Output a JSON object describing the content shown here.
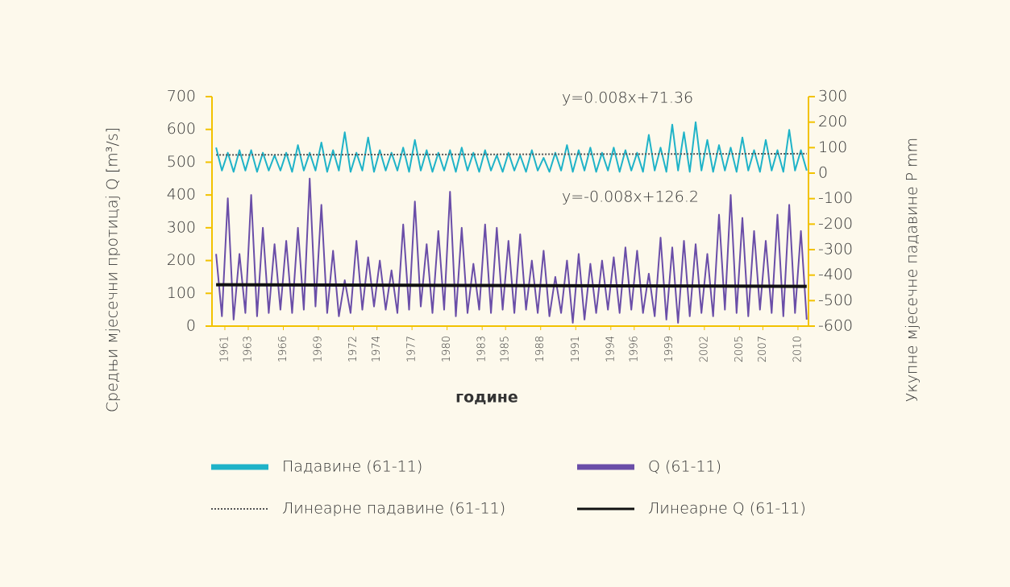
{
  "chart_data": {
    "type": "line",
    "y_label": "Средњи мјесечни протицај Q [m³/s]",
    "y2_label": "Укупне мјесечне падавине P mm",
    "x_label": "године",
    "annotations": [
      "y=0.008x+71.36",
      "y=-0.008x+126.2"
    ],
    "xlim": [
      1959.9,
      2010.9
    ],
    "xticks": [
      1961,
      1963,
      1966,
      1969,
      1972,
      1974,
      1977,
      1980,
      1983,
      1985,
      1988,
      1991,
      1994,
      1996,
      1999,
      2002,
      2005,
      2007,
      2010
    ],
    "ylim": [
      0,
      700
    ],
    "yticks": [
      0,
      100,
      200,
      300,
      400,
      500,
      600,
      700
    ],
    "y2lim": [
      -600,
      300
    ],
    "y2ticks": [
      -600,
      -500,
      -400,
      -300,
      -200,
      -100,
      0,
      100,
      200,
      300
    ],
    "x": [
      1960.25,
      1960.75,
      1961.25,
      1961.75,
      1962.25,
      1962.75,
      1963.25,
      1963.75,
      1964.25,
      1964.75,
      1965.25,
      1965.75,
      1966.25,
      1966.75,
      1967.25,
      1967.75,
      1968.25,
      1968.75,
      1969.25,
      1969.75,
      1970.25,
      1970.75,
      1971.25,
      1971.75,
      1972.25,
      1972.75,
      1973.25,
      1973.75,
      1974.25,
      1974.75,
      1975.25,
      1975.75,
      1976.25,
      1976.75,
      1977.25,
      1977.75,
      1978.25,
      1978.75,
      1979.25,
      1979.75,
      1980.25,
      1980.75,
      1981.25,
      1981.75,
      1982.25,
      1982.75,
      1983.25,
      1983.75,
      1984.25,
      1984.75,
      1985.25,
      1985.75,
      1986.25,
      1986.75,
      1987.25,
      1987.75,
      1988.25,
      1988.75,
      1989.25,
      1989.75,
      1990.25,
      1990.75,
      1991.25,
      1991.75,
      1992.25,
      1992.75,
      1993.25,
      1993.75,
      1994.25,
      1994.75,
      1995.25,
      1995.75,
      1996.25,
      1996.75,
      1997.25,
      1997.75,
      1998.25,
      1998.75,
      1999.25,
      1999.75,
      2000.25,
      2000.75,
      2001.25,
      2001.75,
      2002.25,
      2002.75,
      2003.25,
      2003.75,
      2004.25,
      2004.75,
      2005.25,
      2005.75,
      2006.25,
      2006.75,
      2007.25,
      2007.75,
      2008.25,
      2008.75,
      2009.25,
      2009.75,
      2010.25,
      2010.75
    ],
    "series": [
      {
        "name": "Падавине (61-11)",
        "color": "#1fb3c8",
        "axis": "y2",
        "values": [
          100,
          10,
          80,
          5,
          90,
          10,
          90,
          5,
          80,
          10,
          70,
          10,
          80,
          5,
          110,
          10,
          80,
          10,
          120,
          5,
          90,
          10,
          160,
          5,
          80,
          10,
          140,
          5,
          90,
          10,
          80,
          10,
          100,
          5,
          130,
          10,
          90,
          5,
          80,
          10,
          90,
          5,
          100,
          10,
          80,
          5,
          90,
          10,
          70,
          5,
          80,
          10,
          70,
          5,
          90,
          10,
          60,
          5,
          80,
          10,
          110,
          5,
          90,
          10,
          100,
          5,
          80,
          10,
          100,
          5,
          90,
          10,
          80,
          5,
          150,
          10,
          100,
          5,
          190,
          10,
          160,
          5,
          200,
          10,
          130,
          5,
          110,
          10,
          100,
          5,
          140,
          10,
          90,
          5,
          130,
          10,
          90,
          5,
          170,
          10,
          90,
          10
        ]
      },
      {
        "name": "Q (61-11)",
        "color": "#6a4ea8",
        "values": [
          220,
          30,
          390,
          20,
          220,
          40,
          400,
          30,
          300,
          40,
          250,
          50,
          260,
          40,
          300,
          50,
          450,
          60,
          370,
          40,
          230,
          30,
          140,
          40,
          260,
          50,
          210,
          60,
          200,
          50,
          170,
          40,
          310,
          50,
          380,
          60,
          250,
          40,
          290,
          50,
          410,
          30,
          300,
          40,
          190,
          50,
          310,
          40,
          300,
          50,
          260,
          40,
          280,
          50,
          200,
          40,
          230,
          30,
          150,
          40,
          200,
          10,
          220,
          20,
          190,
          40,
          200,
          50,
          210,
          40,
          240,
          50,
          230,
          40,
          160,
          30,
          270,
          20,
          240,
          10,
          260,
          30,
          250,
          40,
          220,
          30,
          340,
          50,
          400,
          40,
          330,
          30,
          290,
          50,
          260,
          40,
          340,
          30,
          370,
          40,
          290,
          20
        ]
      },
      {
        "name": "Линеарне падавине (61-11)",
        "color": "#555555",
        "axis": "y2",
        "dash": true,
        "x": [
          1960.25,
          2010.75
        ],
        "values": [
          71.4,
          76.2
        ]
      },
      {
        "name": "Линеарне Q (61-11)",
        "color": "#111111",
        "x": [
          1960.25,
          2010.75
        ],
        "values": [
          126.2,
          121.4
        ]
      }
    ]
  }
}
